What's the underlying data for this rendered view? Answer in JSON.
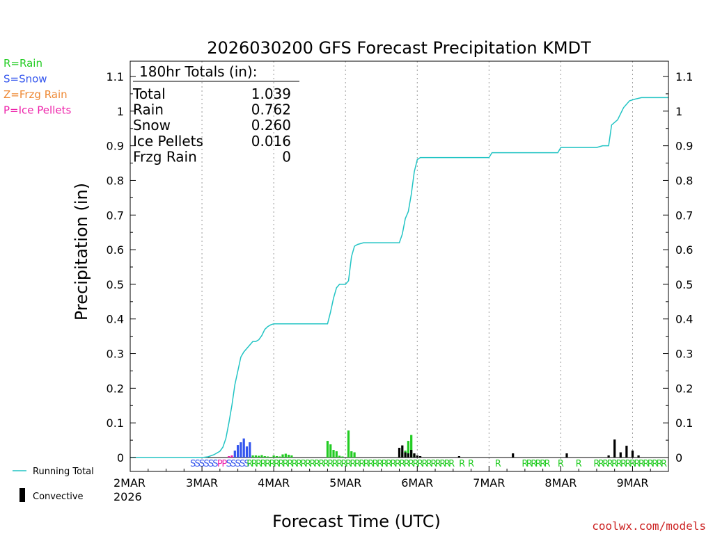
{
  "title": "2026030200 GFS Forecast Precipitation KMDT",
  "credit": "coolwx.com/models",
  "legend_types": [
    {
      "label": "R=Rain",
      "color": "#22cc22"
    },
    {
      "label": "S=Snow",
      "color": "#3355ee"
    },
    {
      "label": "Z=Frzg Rain",
      "color": "#ee8833"
    },
    {
      "label": "P=Ice Pellets",
      "color": "#ee22aa"
    }
  ],
  "legend_lines": [
    {
      "label": "Running Total",
      "color": "#22c4c4"
    },
    {
      "label": "Convective",
      "color": "#000000"
    }
  ],
  "totals": {
    "header": "180hr Totals (in):",
    "rows": [
      {
        "label": "Total",
        "value": "1.039"
      },
      {
        "label": "Rain",
        "value": "0.762"
      },
      {
        "label": "Snow",
        "value": "0.260"
      },
      {
        "label": "Ice Pellets",
        "value": "0.016"
      },
      {
        "label": "Frzg Rain",
        "value": "0"
      }
    ]
  },
  "chart_data": {
    "type": "bar",
    "title": "2026030200 GFS Forecast Precipitation KMDT",
    "xlabel": "Forecast Time (UTC)",
    "ylabel": "Precipitation (in)",
    "ylim": [
      0,
      1.1
    ],
    "xlim_hours": [
      0,
      180
    ],
    "grid": true,
    "y_ticks": [
      0,
      0.1,
      0.2,
      0.3,
      0.4,
      0.5,
      0.6,
      0.7,
      0.8,
      0.9,
      1,
      1.1
    ],
    "y_tick_labels": [
      "0",
      "0.1",
      "0.2",
      "0.3",
      "0.4",
      "0.5",
      "0.6",
      "0.7",
      "0.8",
      "0.9",
      "1",
      "1.1"
    ],
    "x_ticks": [
      {
        "hour": 0,
        "label": "2MAR",
        "sublabel": "2026"
      },
      {
        "hour": 24,
        "label": "3MAR"
      },
      {
        "hour": 48,
        "label": "4MAR"
      },
      {
        "hour": 72,
        "label": "5MAR"
      },
      {
        "hour": 96,
        "label": "6MAR"
      },
      {
        "hour": 120,
        "label": "7MAR"
      },
      {
        "hour": 144,
        "label": "8MAR"
      },
      {
        "hour": 168,
        "label": "9MAR"
      }
    ],
    "running_total": {
      "name": "Running Total",
      "points": [
        [
          0,
          0
        ],
        [
          24,
          0
        ],
        [
          26,
          0.002
        ],
        [
          28,
          0.008
        ],
        [
          30,
          0.018
        ],
        [
          31,
          0.03
        ],
        [
          32,
          0.055
        ],
        [
          33,
          0.1
        ],
        [
          34,
          0.15
        ],
        [
          35,
          0.21
        ],
        [
          36,
          0.25
        ],
        [
          37,
          0.29
        ],
        [
          38,
          0.305
        ],
        [
          39,
          0.315
        ],
        [
          40,
          0.325
        ],
        [
          41,
          0.335
        ],
        [
          42,
          0.335
        ],
        [
          43,
          0.34
        ],
        [
          44,
          0.352
        ],
        [
          45,
          0.37
        ],
        [
          46,
          0.378
        ],
        [
          47,
          0.383
        ],
        [
          48,
          0.386
        ],
        [
          52,
          0.386
        ],
        [
          60,
          0.386
        ],
        [
          66,
          0.386
        ],
        [
          67,
          0.42
        ],
        [
          68,
          0.46
        ],
        [
          69,
          0.49
        ],
        [
          70,
          0.5
        ],
        [
          72,
          0.5
        ],
        [
          73,
          0.51
        ],
        [
          74,
          0.58
        ],
        [
          75,
          0.61
        ],
        [
          76,
          0.615
        ],
        [
          78,
          0.62
        ],
        [
          84,
          0.62
        ],
        [
          90,
          0.62
        ],
        [
          91,
          0.645
        ],
        [
          92,
          0.69
        ],
        [
          93,
          0.71
        ],
        [
          94,
          0.76
        ],
        [
          95,
          0.825
        ],
        [
          96,
          0.86
        ],
        [
          97,
          0.866
        ],
        [
          100,
          0.866
        ],
        [
          110,
          0.866
        ],
        [
          120,
          0.866
        ],
        [
          121,
          0.88
        ],
        [
          130,
          0.88
        ],
        [
          140,
          0.88
        ],
        [
          143,
          0.88
        ],
        [
          144,
          0.895
        ],
        [
          156,
          0.895
        ],
        [
          158,
          0.9
        ],
        [
          160,
          0.9
        ],
        [
          161,
          0.96
        ],
        [
          163,
          0.975
        ],
        [
          165,
          1.01
        ],
        [
          167,
          1.03
        ],
        [
          169,
          1.035
        ],
        [
          171,
          1.039
        ],
        [
          180,
          1.039
        ]
      ]
    },
    "series": [
      {
        "name": "Rain",
        "color": "#22cc22",
        "bars": [
          [
            41,
            0.006
          ],
          [
            42,
            0.006
          ],
          [
            43,
            0.005
          ],
          [
            44,
            0.007
          ],
          [
            45,
            0.004
          ],
          [
            46,
            0.003
          ],
          [
            47,
            0.002
          ],
          [
            48,
            0.006
          ],
          [
            49,
            0.004
          ],
          [
            50,
            0.003
          ],
          [
            51,
            0.009
          ],
          [
            52,
            0.011
          ],
          [
            53,
            0.008
          ],
          [
            54,
            0.006
          ],
          [
            66,
            0.048
          ],
          [
            67,
            0.038
          ],
          [
            68,
            0.022
          ],
          [
            69,
            0.018
          ],
          [
            70,
            0.005
          ],
          [
            71,
            0.003
          ],
          [
            73,
            0.078
          ],
          [
            74,
            0.018
          ],
          [
            75,
            0.015
          ],
          [
            91,
            0.015
          ],
          [
            92,
            0.02
          ],
          [
            93,
            0.048
          ],
          [
            94,
            0.065
          ],
          [
            95,
            0.01
          ]
        ]
      },
      {
        "name": "Snow",
        "color": "#3355ee",
        "bars": [
          [
            35,
            0.02
          ],
          [
            36,
            0.036
          ],
          [
            37,
            0.044
          ],
          [
            38,
            0.055
          ],
          [
            39,
            0.032
          ],
          [
            40,
            0.044
          ]
        ]
      },
      {
        "name": "Ice Pellets",
        "color": "#ee22aa",
        "bars": [
          [
            33,
            0.004
          ],
          [
            34,
            0.006
          ]
        ]
      },
      {
        "name": "Convective",
        "color": "#000000",
        "bars": [
          [
            90,
            0.028
          ],
          [
            91,
            0.035
          ],
          [
            92,
            0.015
          ],
          [
            93,
            0.012
          ],
          [
            94,
            0.022
          ],
          [
            95,
            0.012
          ],
          [
            96,
            0.006
          ],
          [
            97,
            0.004
          ],
          [
            110,
            0.004
          ],
          [
            128,
            0.012
          ],
          [
            146,
            0.012
          ],
          [
            160,
            0.006
          ],
          [
            162,
            0.052
          ],
          [
            164,
            0.015
          ],
          [
            166,
            0.034
          ],
          [
            168,
            0.02
          ],
          [
            170,
            0.006
          ]
        ]
      }
    ],
    "ptype_marks": [
      {
        "type": "S",
        "color": "#3355ee",
        "start": 21,
        "end": 30
      },
      {
        "type": "P",
        "color": "#ee22aa",
        "start": 30,
        "end": 33
      },
      {
        "type": "S",
        "color": "#3355ee",
        "start": 33,
        "end": 40
      },
      {
        "type": "R",
        "color": "#22cc22",
        "start": 40,
        "end": 108
      },
      {
        "type": "R",
        "color": "#22cc22",
        "start": 111,
        "end": 112
      },
      {
        "type": "R",
        "color": "#22cc22",
        "start": 114,
        "end": 115
      },
      {
        "type": "R",
        "color": "#22cc22",
        "start": 123,
        "end": 124
      },
      {
        "type": "R",
        "color": "#22cc22",
        "start": 132,
        "end": 141
      },
      {
        "type": "R",
        "color": "#22cc22",
        "start": 144,
        "end": 145
      },
      {
        "type": "R",
        "color": "#22cc22",
        "start": 150,
        "end": 151
      },
      {
        "type": "R",
        "color": "#22cc22",
        "start": 156,
        "end": 180
      }
    ]
  }
}
